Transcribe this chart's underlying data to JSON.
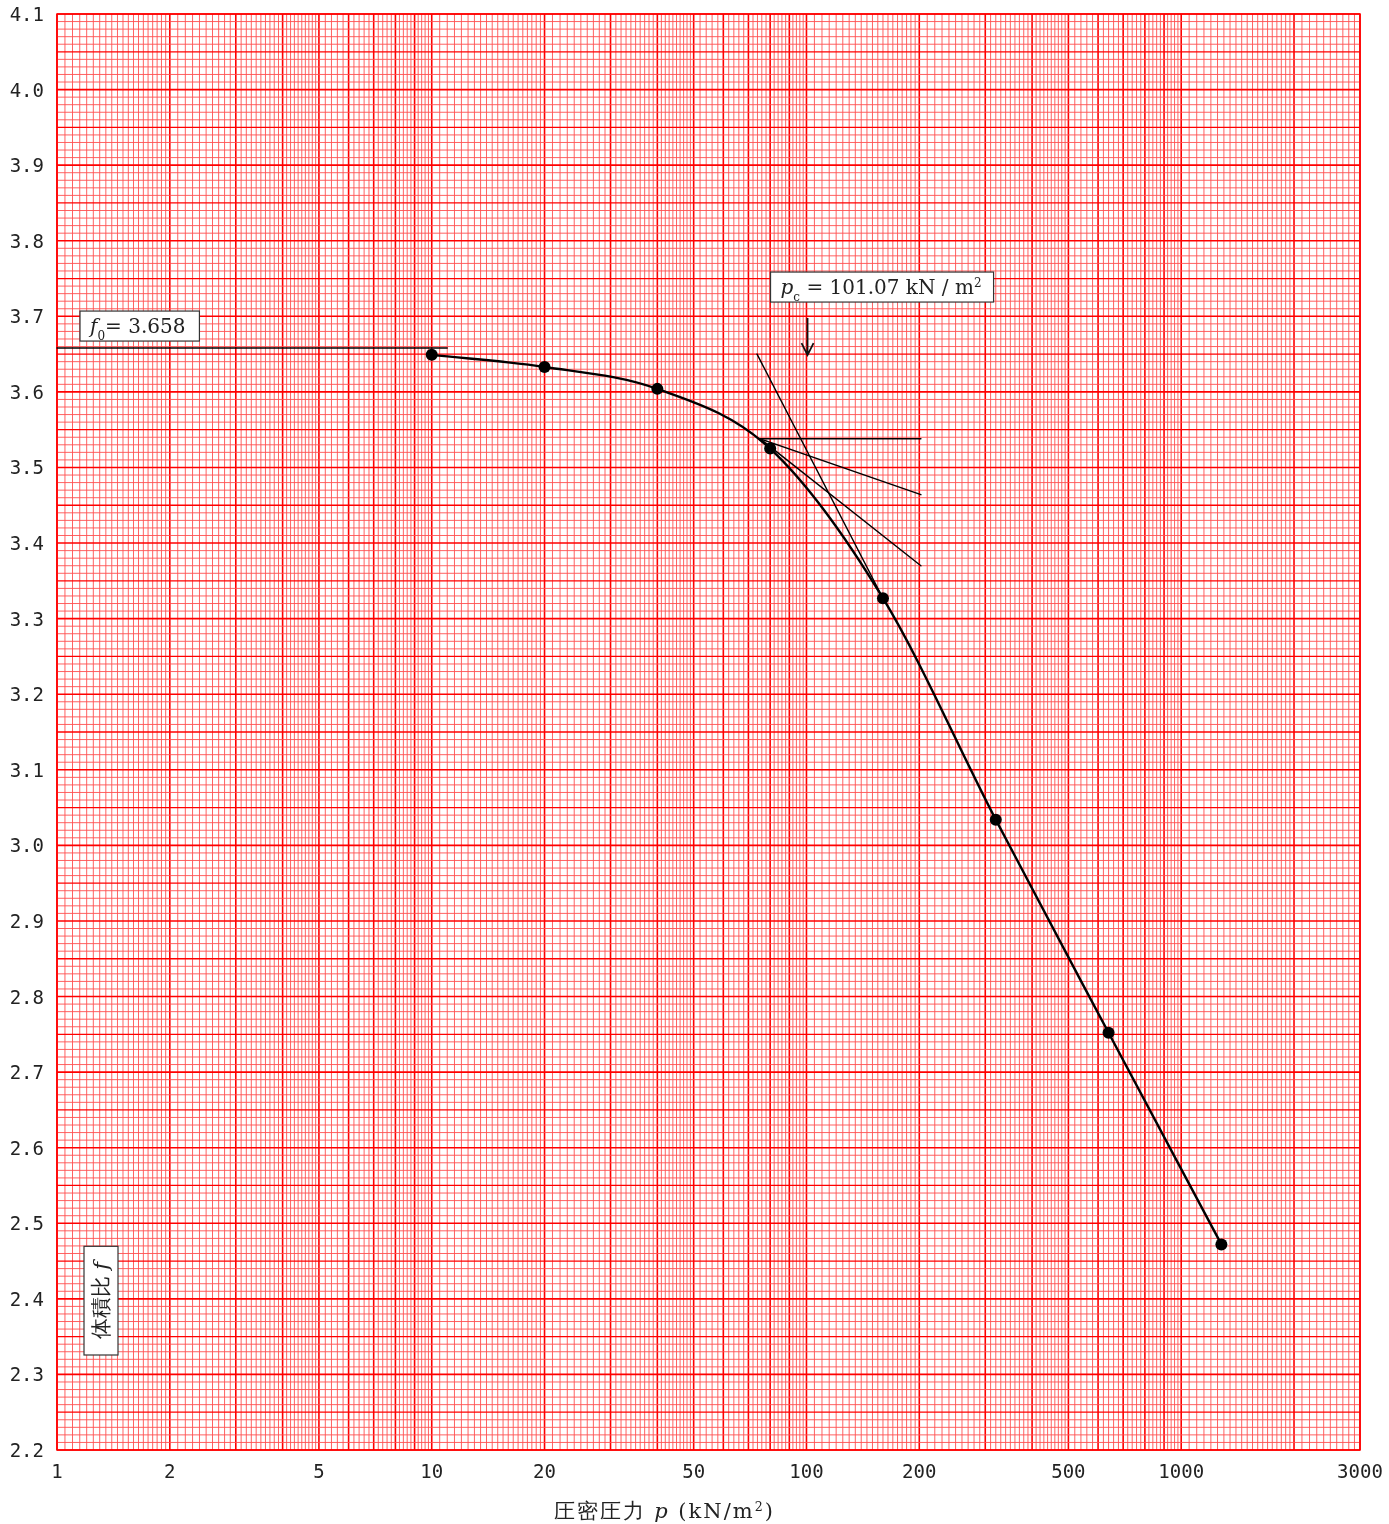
{
  "chart_data": {
    "type": "line",
    "xlabel": "圧密圧力 *p* (kN/m$^{2}$)",
    "ylabel": "体積比 *f*",
    "log": "x",
    "xlim": [
      1,
      3000
    ],
    "ylim": [
      2.2,
      4.1
    ],
    "xticks": [
      1,
      2,
      5,
      10,
      20,
      50,
      100,
      200,
      500,
      1000,
      3000
    ],
    "yticks": [
      2.2,
      2.3,
      2.4,
      2.5,
      2.6,
      2.7,
      2.8,
      2.9,
      {
        "value": 3.0,
        "label": "3.0"
      },
      3.1,
      3.2,
      3.3,
      3.4,
      3.5,
      3.6,
      3.7,
      3.8,
      3.9,
      {
        "value": 4.0,
        "label": "4.0"
      },
      4.1
    ],
    "grid": true,
    "line_style": "solid",
    "series": [
      {
        "color": "#000000",
        "marker": "circle",
        "x": [
          10,
          20,
          40,
          80,
          160,
          320,
          640,
          1280
        ],
        "values": [
          3.649,
          3.633,
          3.604,
          3.525,
          3.327,
          3.034,
          2.752,
          2.472
        ]
      },
      {
        "color": "#000000",
        "marker": "none",
        "x": [
          1,
          11
        ],
        "values": [
          3.658,
          3.658
        ]
      },
      {
        "color": "#000000",
        "marker": "none",
        "x": [
          75.2,
          202
        ],
        "values": [
          3.538,
          3.538
        ]
      },
      {
        "color": "#000000",
        "marker": "none",
        "x": [
          75.2,
          202
        ],
        "values": [
          3.538,
          3.464
        ]
      },
      {
        "color": "#000000",
        "marker": "none",
        "x": [
          75.2,
          202
        ],
        "values": [
          3.538,
          3.37
        ]
      },
      {
        "color": "#000000",
        "marker": "none",
        "x": [
          73.8,
          160
        ],
        "values": [
          3.65,
          3.327
        ]
      }
    ],
    "annotations": [
      {
        "text": "*f*$_{0}$= 3.658",
        "x": 1,
        "y": 3.658
      },
      "*p*$_{c}$ = 101.07 kN / m$^{2}$"
    ]
  }
}
